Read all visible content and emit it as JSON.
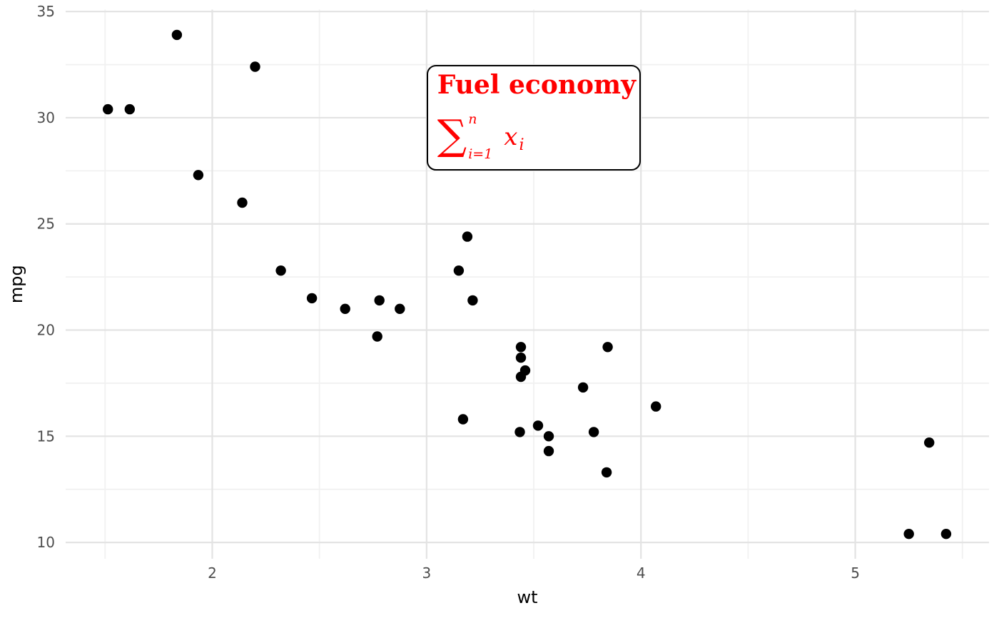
{
  "chart_data": {
    "type": "scatter",
    "title": "",
    "xlabel": "wt",
    "ylabel": "mpg",
    "xlim": [
      1.316,
      5.624
    ],
    "ylim": [
      9.23,
      35.09
    ],
    "x_major_ticks": [
      2,
      3,
      4,
      5
    ],
    "x_minor_ticks": [
      1.5,
      2.5,
      3.5,
      4.5,
      5.5
    ],
    "y_major_ticks": [
      10,
      15,
      20,
      25,
      30,
      35
    ],
    "y_minor_ticks": [
      12.5,
      17.5,
      22.5,
      27.5,
      32.5
    ],
    "grid": true,
    "legend_position": "none",
    "point_keys": [
      "wt",
      "mpg"
    ],
    "points": [
      [
        2.62,
        21.0
      ],
      [
        2.875,
        21.0
      ],
      [
        2.32,
        22.8
      ],
      [
        3.215,
        21.4
      ],
      [
        3.44,
        18.7
      ],
      [
        3.46,
        18.1
      ],
      [
        3.57,
        14.3
      ],
      [
        3.19,
        24.4
      ],
      [
        3.15,
        22.8
      ],
      [
        3.44,
        19.2
      ],
      [
        3.44,
        17.8
      ],
      [
        4.07,
        16.4
      ],
      [
        3.73,
        17.3
      ],
      [
        3.78,
        15.2
      ],
      [
        5.25,
        10.4
      ],
      [
        5.424,
        10.4
      ],
      [
        5.345,
        14.7
      ],
      [
        2.2,
        32.4
      ],
      [
        1.615,
        30.4
      ],
      [
        1.835,
        33.9
      ],
      [
        2.465,
        21.5
      ],
      [
        3.52,
        15.5
      ],
      [
        3.435,
        15.2
      ],
      [
        3.84,
        13.3
      ],
      [
        3.845,
        19.2
      ],
      [
        1.935,
        27.3
      ],
      [
        2.14,
        26.0
      ],
      [
        1.513,
        30.4
      ],
      [
        3.17,
        15.8
      ],
      [
        2.77,
        19.7
      ],
      [
        3.57,
        15.0
      ],
      [
        2.78,
        21.4
      ]
    ],
    "style": {
      "background": "#FFFFFF",
      "point_color": "#000000",
      "point_radius": 7.2,
      "grid_major_color": "#E3E3E3",
      "grid_minor_color": "#F1F1F1",
      "tick_label_color": "#4D4D4D",
      "axis_title_color": "#000000"
    },
    "annotation": {
      "title": "Fuel economy",
      "formula": {
        "sigma": "∑",
        "upper": "n",
        "lower": "i=1",
        "variable": "x",
        "subscript": "i"
      },
      "text_color": "#FF0000",
      "border_color": "#000000",
      "fill_color": "#FFFFFF",
      "box_x": [
        3,
        4
      ],
      "box_y": [
        27.5,
        32.5
      ]
    }
  }
}
